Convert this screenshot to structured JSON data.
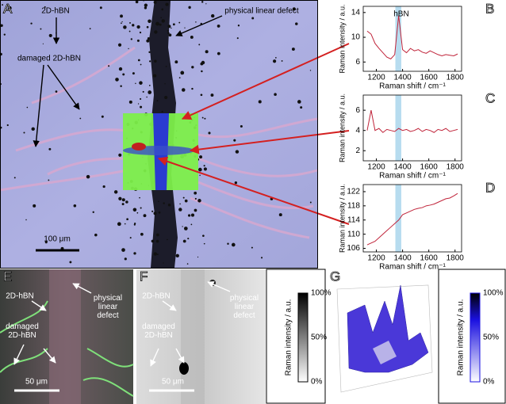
{
  "panel_labels": [
    "A",
    "B",
    "C",
    "D",
    "E",
    "F",
    "G"
  ],
  "panel_a": {
    "hbn": "2D-hBN",
    "damaged": "damaged 2D-hBN",
    "defect": "physical linear defect",
    "scale_bar": "100 μm"
  },
  "panel_e": {
    "hbn": "2D-hBN",
    "damaged": [
      "damaged",
      "2D-hBN"
    ],
    "defect": [
      "physical",
      "linear",
      "defect"
    ],
    "scale_bar": "50 μm"
  },
  "panel_f": {
    "hbn": "2D-hBN",
    "damaged": [
      "damaged",
      "2D-hBN"
    ],
    "defect": [
      "physical",
      "linear",
      "defect"
    ],
    "scale_bar": "50 μm"
  },
  "colorbars": [
    {
      "label": "Raman intensity / a.u.",
      "ticks": [
        "100%",
        "50%",
        "0%"
      ],
      "color": "#000000"
    },
    {
      "label": "Raman intensity / a.u.",
      "ticks": [
        "100%",
        "50%",
        "0%"
      ],
      "color": "#1a10e0"
    }
  ],
  "chart_data": [
    {
      "type": "line",
      "annotation": "hBN",
      "xlabel": "Raman shift / cm⁻¹",
      "ylabel": "Raman intensity / a.u.",
      "color": "#c0243a",
      "band": [
        1345,
        1390
      ],
      "band_color": "#b7dcef",
      "x": [
        1130,
        1160,
        1190,
        1220,
        1250,
        1280,
        1310,
        1340,
        1370,
        1400,
        1430,
        1460,
        1490,
        1520,
        1550,
        1580,
        1610,
        1640,
        1670,
        1700,
        1730,
        1760,
        1790,
        1820
      ],
      "values": [
        11,
        10.5,
        9,
        8.2,
        7.5,
        6.8,
        6.5,
        7.2,
        13.5,
        8,
        7.5,
        8.2,
        7.8,
        8,
        7.6,
        7.4,
        7.8,
        7.5,
        7.2,
        7,
        7.2,
        7.1,
        7,
        7.3
      ],
      "xlim": [
        1100,
        1850
      ],
      "xticks": [
        1200,
        1400,
        1600,
        1800
      ],
      "ylim": [
        4.5,
        15
      ],
      "yticks": [
        6,
        10,
        14
      ]
    },
    {
      "type": "line",
      "xlabel": "Raman shift / cm⁻¹",
      "ylabel": "Raman intensity / a.u.",
      "color": "#c0243a",
      "band": [
        1345,
        1390
      ],
      "band_color": "#b7dcef",
      "x": [
        1130,
        1160,
        1190,
        1220,
        1250,
        1280,
        1310,
        1340,
        1370,
        1400,
        1430,
        1460,
        1490,
        1520,
        1550,
        1580,
        1610,
        1640,
        1670,
        1700,
        1730,
        1760,
        1790,
        1820
      ],
      "values": [
        4,
        6,
        4,
        4.2,
        3.8,
        4.1,
        4,
        3.9,
        4.2,
        4,
        4.1,
        3.9,
        4,
        4.2,
        3.9,
        4.1,
        4,
        3.8,
        4.1,
        4,
        4.2,
        3.9,
        4,
        4.1
      ],
      "xlim": [
        1100,
        1850
      ],
      "xticks": [
        1200,
        1400,
        1600,
        1800
      ],
      "ylim": [
        1,
        7.5
      ],
      "yticks": [
        2,
        4,
        6
      ]
    },
    {
      "type": "line",
      "xlabel": "Raman shift / cm⁻¹",
      "ylabel": "Raman intensity / a.u.",
      "color": "#c0243a",
      "band": [
        1345,
        1390
      ],
      "band_color": "#b7dcef",
      "x": [
        1130,
        1160,
        1190,
        1220,
        1250,
        1280,
        1310,
        1340,
        1370,
        1400,
        1430,
        1460,
        1490,
        1520,
        1550,
        1580,
        1610,
        1640,
        1670,
        1700,
        1730,
        1760,
        1790,
        1820
      ],
      "values": [
        107,
        107.5,
        108,
        109,
        110,
        111,
        112,
        113,
        114,
        115.5,
        116,
        116.5,
        117,
        117.3,
        117.5,
        118,
        118.2,
        118.5,
        119,
        119.5,
        120,
        120.2,
        120.8,
        121.5
      ],
      "xlim": [
        1100,
        1850
      ],
      "xticks": [
        1200,
        1400,
        1600,
        1800
      ],
      "ylim": [
        105,
        124
      ],
      "yticks": [
        106,
        110,
        114,
        118,
        122
      ]
    }
  ]
}
